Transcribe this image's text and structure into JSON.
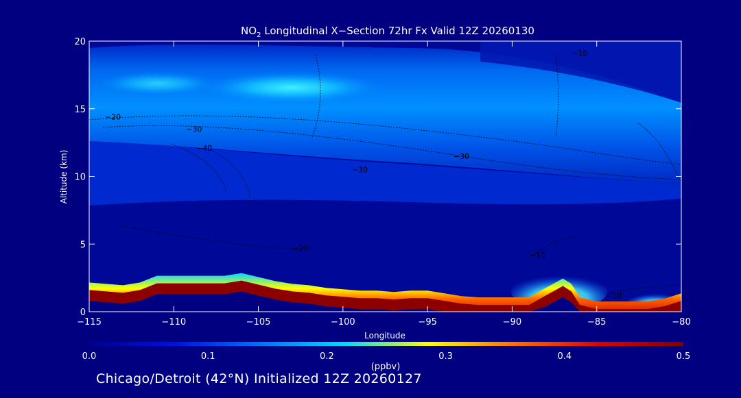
{
  "chart_data": {
    "type": "heatmap",
    "title": {
      "prefix": "NO",
      "subscript": "2",
      "suffix": " Longitudinal X−Section 72hr  Fx Valid 12Z 20260130"
    },
    "xlabel": "Longitude",
    "ylabel": "Altitude (km)",
    "xlim": [
      -115,
      -80
    ],
    "ylim": [
      0,
      20
    ],
    "x_ticks": [
      -115,
      -110,
      -105,
      -100,
      -95,
      -90,
      -85,
      -80
    ],
    "x_tick_labels": [
      "−115",
      "−110",
      "−105",
      "−100",
      "−95",
      "−90",
      "−85",
      "−80"
    ],
    "y_ticks": [
      0,
      5,
      10,
      15,
      20
    ],
    "y_tick_labels": [
      "0",
      "5",
      "10",
      "15",
      "20"
    ],
    "colorbar": {
      "label": "(ppbv)",
      "range": [
        0.0,
        0.5
      ],
      "ticks": [
        0.0,
        0.1,
        0.2,
        0.3,
        0.4,
        0.5
      ],
      "tick_labels": [
        "0.0",
        "0.1",
        "0.2",
        "0.3",
        "0.4",
        "0.5"
      ],
      "colors": [
        "#000090",
        "#0010e0",
        "#0070ff",
        "#00d8ff",
        "#ffff00",
        "#ff7000",
        "#e00000",
        "#800000"
      ]
    },
    "contour_labels": [
      {
        "text": "−20",
        "lon": -113.6,
        "alt": 14.2
      },
      {
        "text": "−30",
        "lon": -108.8,
        "alt": 13.3
      },
      {
        "text": "−40",
        "lon": -108.2,
        "alt": 11.9
      },
      {
        "text": "−30",
        "lon": -99.0,
        "alt": 10.3
      },
      {
        "text": "−30",
        "lon": -93.0,
        "alt": 11.3
      },
      {
        "text": "−20",
        "lon": -102.5,
        "alt": 4.5
      },
      {
        "text": "−10",
        "lon": -88.5,
        "alt": 4.0
      },
      {
        "text": "−10",
        "lon": -84.0,
        "alt": 1.0
      },
      {
        "text": "−10",
        "lon": -86.0,
        "alt": 18.9
      }
    ],
    "surface_terrain_km": [
      [
        -115,
        1.7
      ],
      [
        -114,
        1.6
      ],
      [
        -113,
        1.5
      ],
      [
        -112,
        1.7
      ],
      [
        -111,
        2.2
      ],
      [
        -110,
        2.2
      ],
      [
        -109,
        2.2
      ],
      [
        -108,
        2.2
      ],
      [
        -107,
        2.2
      ],
      [
        -106,
        2.4
      ],
      [
        -105,
        2.1
      ],
      [
        -104,
        1.8
      ],
      [
        -103,
        1.6
      ],
      [
        -102,
        1.5
      ],
      [
        -101,
        1.3
      ],
      [
        -100,
        1.2
      ],
      [
        -99,
        1.1
      ],
      [
        -98,
        1.1
      ],
      [
        -97,
        1.0
      ],
      [
        -96,
        1.1
      ],
      [
        -95,
        1.1
      ],
      [
        -94,
        0.9
      ],
      [
        -93,
        0.7
      ],
      [
        -92,
        0.6
      ],
      [
        -91,
        0.6
      ],
      [
        -90,
        0.6
      ],
      [
        -89,
        0.6
      ],
      [
        -88,
        1.3
      ],
      [
        -87,
        2.0
      ],
      [
        -86.5,
        1.6
      ],
      [
        -86,
        0.6
      ],
      [
        -85,
        0.3
      ],
      [
        -84,
        0.3
      ],
      [
        -83,
        0.3
      ],
      [
        -82,
        0.3
      ],
      [
        -81,
        0.5
      ],
      [
        -80,
        0.9
      ]
    ]
  },
  "footer": {
    "caption": "Chicago/Detroit (42°N) Initialized 12Z 20260127"
  }
}
